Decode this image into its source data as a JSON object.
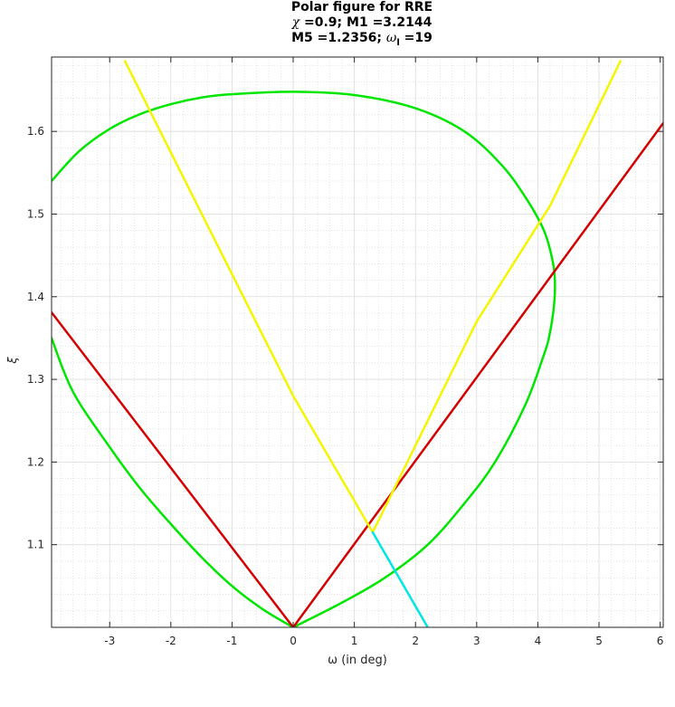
{
  "title": {
    "line1": "Polar figure for RRE",
    "line2_sym": "χ",
    "line2_rest": " =0.9; M1 =3.2144",
    "line3_pre": "M5 =1.2356; ",
    "line3_sym": "ω",
    "line3_sub": "l",
    "line3_post": " =19"
  },
  "chart_data": {
    "type": "line",
    "title": "Polar figure for RRE",
    "xlabel": "ω (in deg)",
    "ylabel": "ξ",
    "xlim": [
      -3.95,
      6.05
    ],
    "ylim": [
      1.0,
      1.69
    ],
    "xticks": [
      -3,
      -2,
      -1,
      0,
      1,
      2,
      3,
      4,
      5,
      6
    ],
    "yticks": [
      1.1,
      1.2,
      1.3,
      1.4,
      1.5,
      1.6
    ],
    "grid": true,
    "minor_grid": true,
    "colors": {
      "green": "#00e600",
      "red": "#d40000",
      "yellow": "#f5f500",
      "cyan": "#00e6e6"
    },
    "series": [
      {
        "color": "green",
        "points": [
          [
            -3.95,
            1.54
          ],
          [
            -3.5,
            1.576
          ],
          [
            -3,
            1.603
          ],
          [
            -2.5,
            1.621
          ],
          [
            -2,
            1.633
          ],
          [
            -1.5,
            1.641
          ],
          [
            -1,
            1.645
          ],
          [
            0,
            1.648
          ],
          [
            1,
            1.644
          ],
          [
            2,
            1.628
          ],
          [
            2.8,
            1.6
          ],
          [
            3.4,
            1.56
          ],
          [
            3.8,
            1.52
          ],
          [
            4.1,
            1.48
          ],
          [
            4.25,
            1.44
          ],
          [
            4.28,
            1.41
          ],
          [
            4.25,
            1.38
          ],
          [
            4.18,
            1.35
          ],
          [
            4.1,
            1.33
          ],
          [
            3.8,
            1.27
          ],
          [
            3.3,
            1.2
          ],
          [
            2.8,
            1.15
          ],
          [
            2.2,
            1.1
          ],
          [
            1.5,
            1.06
          ],
          [
            0.8,
            1.03
          ],
          [
            0,
            1.0
          ]
        ]
      },
      {
        "color": "green",
        "points": [
          [
            -3.95,
            1.35
          ],
          [
            -3.6,
            1.285
          ],
          [
            -3,
            1.218
          ],
          [
            -2.5,
            1.168
          ],
          [
            -2,
            1.125
          ],
          [
            -1.5,
            1.085
          ],
          [
            -1,
            1.05
          ],
          [
            -0.5,
            1.022
          ],
          [
            0,
            1.0
          ]
        ]
      },
      {
        "color": "red",
        "points": [
          [
            -3.95,
            1.381
          ],
          [
            0,
            1.0
          ]
        ]
      },
      {
        "color": "red",
        "points": [
          [
            0,
            1.0
          ],
          [
            6.05,
            1.61
          ]
        ]
      },
      {
        "color": "yellow",
        "points": [
          [
            -2.75,
            1.685
          ],
          [
            0.0,
            1.28
          ],
          [
            1.3,
            1.115
          ]
        ]
      },
      {
        "color": "yellow",
        "points": [
          [
            1.3,
            1.115
          ],
          [
            2.2,
            1.25
          ],
          [
            3.0,
            1.37
          ],
          [
            4.2,
            1.51
          ],
          [
            5.35,
            1.685
          ]
        ]
      },
      {
        "color": "cyan",
        "points": [
          [
            1.3,
            1.115
          ],
          [
            2.2,
            1.0
          ]
        ]
      }
    ]
  }
}
